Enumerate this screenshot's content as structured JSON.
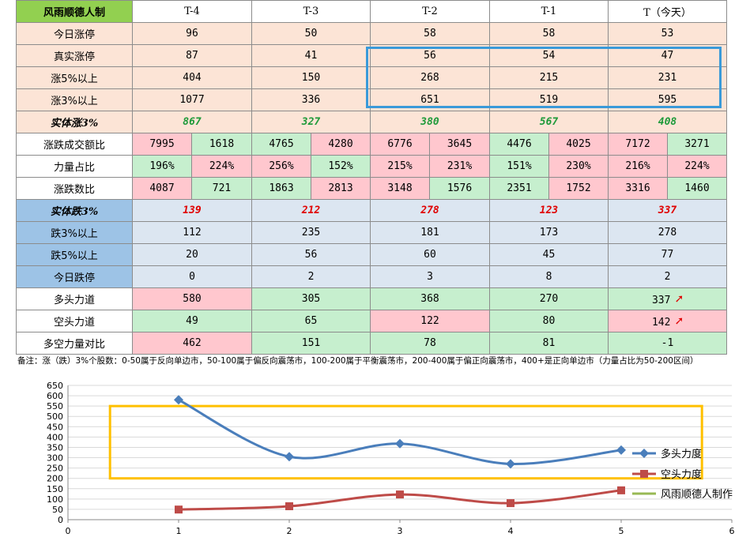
{
  "table": {
    "brand": "风雨顺德人制",
    "columns": [
      "T-4",
      "T-3",
      "T-2",
      "T-1",
      "T（今天）"
    ],
    "rows": {
      "zt": {
        "label": "今日涨停",
        "values": [
          "96",
          "50",
          "58",
          "58",
          "53"
        ]
      },
      "real": {
        "label": "真实涨停",
        "values": [
          "87",
          "41",
          "56",
          "54",
          "47"
        ]
      },
      "up5": {
        "label": "涨5%以上",
        "values": [
          "404",
          "150",
          "268",
          "215",
          "231"
        ]
      },
      "up3": {
        "label": "涨3%以上",
        "values": [
          "1077",
          "336",
          "651",
          "519",
          "595"
        ]
      },
      "body_up": {
        "label": "实体涨3%",
        "values": [
          "867",
          "327",
          "380",
          "567",
          "408"
        ]
      },
      "amount": {
        "label": "涨跌成交额比",
        "values": [
          [
            "7995",
            "1618"
          ],
          [
            "4765",
            "4280"
          ],
          [
            "6776",
            "3645"
          ],
          [
            "4476",
            "4025"
          ],
          [
            "7172",
            "3271"
          ]
        ]
      },
      "power": {
        "label": "力量占比",
        "values": [
          [
            "196%",
            "224%"
          ],
          [
            "256%",
            "152%"
          ],
          [
            "215%",
            "231%"
          ],
          [
            "151%",
            "230%"
          ],
          [
            "216%",
            "224%"
          ]
        ]
      },
      "count": {
        "label": "涨跌数比",
        "values": [
          [
            "4087",
            "721"
          ],
          [
            "1863",
            "2813"
          ],
          [
            "3148",
            "1576"
          ],
          [
            "2351",
            "1752"
          ],
          [
            "3316",
            "1460"
          ]
        ]
      },
      "body_dn": {
        "label": "实体跌3%",
        "values": [
          "139",
          "212",
          "278",
          "123",
          "337"
        ]
      },
      "dn3": {
        "label": "跌3%以上",
        "values": [
          "112",
          "235",
          "181",
          "173",
          "278"
        ]
      },
      "dn5": {
        "label": "跌5%以上",
        "values": [
          "20",
          "56",
          "60",
          "45",
          "77"
        ]
      },
      "dt": {
        "label": "今日跌停",
        "values": [
          "0",
          "2",
          "3",
          "8",
          "2"
        ]
      },
      "bull": {
        "label": "多头力道",
        "values": [
          "580",
          "305",
          "368",
          "270",
          "337"
        ]
      },
      "bear": {
        "label": "空头力道",
        "values": [
          "49",
          "65",
          "122",
          "80",
          "142"
        ]
      },
      "ratio": {
        "label": "多空力量对比",
        "values": [
          "462",
          "151",
          "78",
          "81",
          "-1"
        ]
      }
    },
    "arrow_glyph": "➚"
  },
  "note": "备注：涨（跌）3%个股数：0-50属于反向单边市，50-100属于偏反向震荡市，100-200属于平衡震荡市，200-400属于偏正向震荡市，400+是正向单边市（力量占比为50-200区间）",
  "colors": {
    "bull": "#4a7ebb",
    "bear": "#be4b48",
    "legend3": "#98b954",
    "highlight_box": "#ffc000"
  },
  "chart_data": {
    "type": "line",
    "title": "",
    "xlabel": "",
    "ylabel": "",
    "xlim": [
      0,
      6
    ],
    "ylim": [
      0,
      650
    ],
    "x_ticks": [
      0,
      1,
      2,
      3,
      4,
      5,
      6
    ],
    "y_ticks": [
      0,
      50,
      100,
      150,
      200,
      250,
      300,
      350,
      400,
      450,
      500,
      550,
      600,
      650
    ],
    "grid": "horizontal",
    "legend_position": "right",
    "series": [
      {
        "name": "多头力度",
        "x": [
          1,
          2,
          3,
          4,
          5
        ],
        "values": [
          580,
          305,
          368,
          270,
          337
        ],
        "marker": "diamond",
        "color": "#4a7ebb"
      },
      {
        "name": "空头力度",
        "x": [
          1,
          2,
          3,
          4,
          5
        ],
        "values": [
          49,
          65,
          122,
          80,
          142
        ],
        "marker": "square",
        "color": "#be4b48"
      },
      {
        "name": "风雨顺德人制作",
        "x": [],
        "values": [],
        "marker": "none",
        "color": "#98b954"
      }
    ],
    "highlight_band": [
      200,
      550
    ]
  }
}
